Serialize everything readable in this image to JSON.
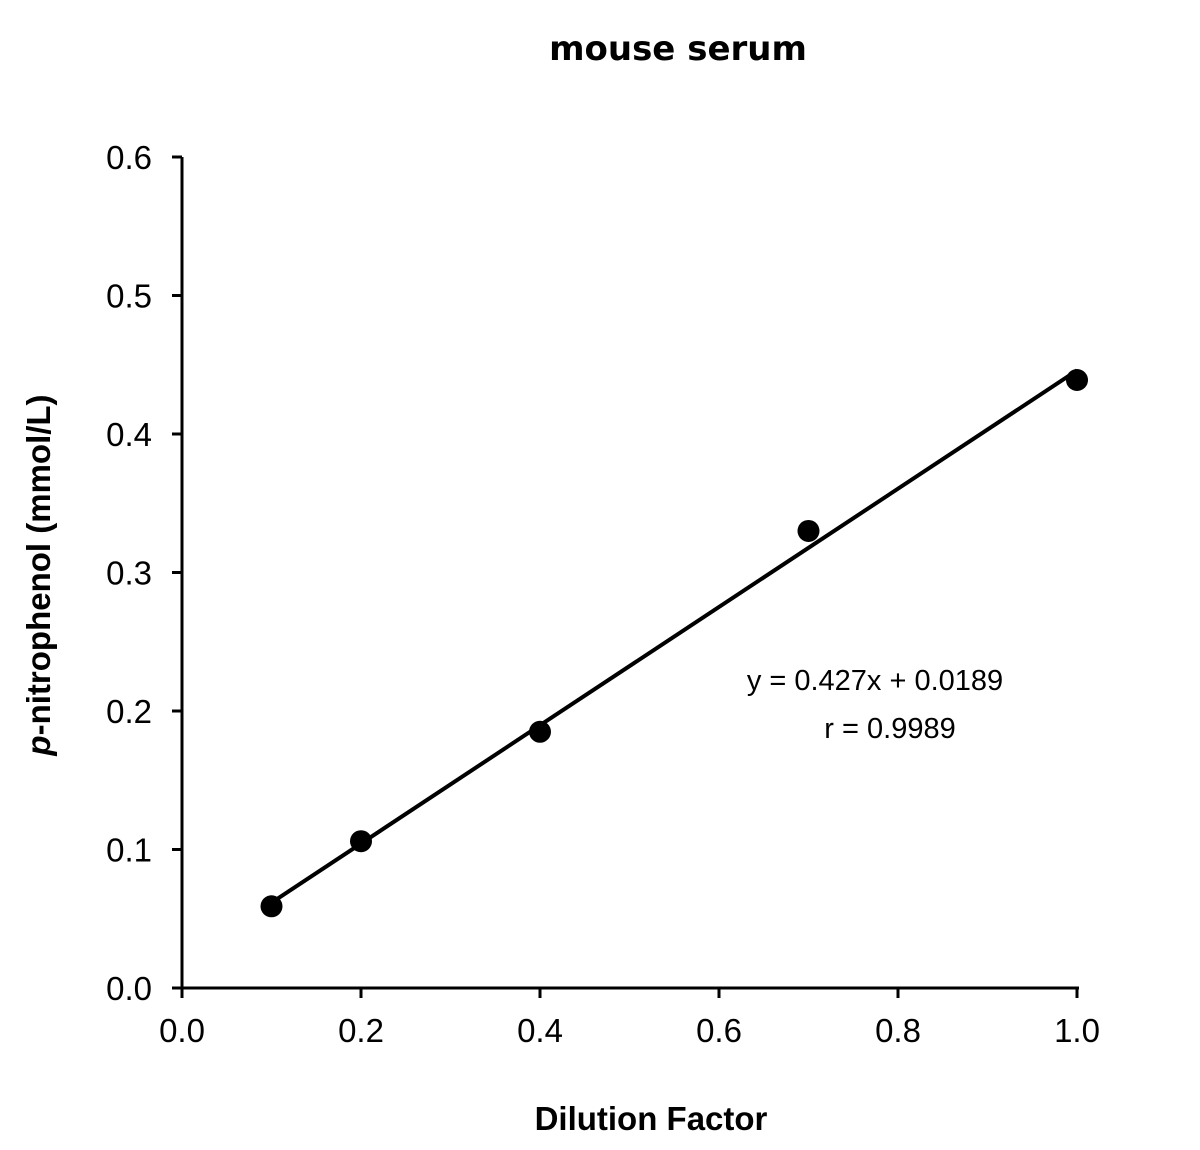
{
  "chart_data": {
    "type": "scatter",
    "title": "mouse serum",
    "xlabel": "Dilution Factor",
    "ylabel_italic_prefix": "p",
    "ylabel_rest": "-nitrophenol (mmol/L)",
    "ylabel": "p-nitrophenol (mmol/L)",
    "xlim": [
      0.0,
      1.0
    ],
    "ylim": [
      0.0,
      0.6
    ],
    "x_ticks": [
      "0.0",
      "0.2",
      "0.4",
      "0.6",
      "0.8",
      "1.0"
    ],
    "y_ticks": [
      "0.0",
      "0.1",
      "0.2",
      "0.3",
      "0.4",
      "0.5",
      "0.6"
    ],
    "grid": false,
    "legend": null,
    "series": [
      {
        "name": "mouse serum",
        "marker": "circle",
        "color": "#000000",
        "x": [
          0.1,
          0.2,
          0.4,
          0.7,
          1.0
        ],
        "y": [
          0.059,
          0.106,
          0.185,
          0.33,
          0.439
        ]
      }
    ],
    "trendline": {
      "type": "linear",
      "slope": 0.427,
      "intercept": 0.0189,
      "x_range": [
        0.1,
        1.0
      ],
      "color": "#000000"
    },
    "annotations": [
      {
        "text": "y = 0.427x + 0.0189"
      },
      {
        "text": "r = 0.9989"
      }
    ]
  }
}
